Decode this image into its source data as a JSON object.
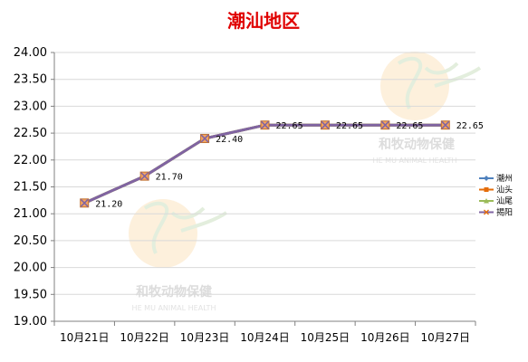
{
  "chart_data": {
    "type": "line",
    "title": "潮汕地区",
    "categories": [
      "10月21日",
      "10月22日",
      "10月23日",
      "10月24日",
      "10月25日",
      "10月26日",
      "10月27日"
    ],
    "ylim": [
      19.0,
      24.0
    ],
    "yticks": [
      "19.00",
      "19.50",
      "20.00",
      "20.50",
      "21.00",
      "21.50",
      "22.00",
      "22.50",
      "23.00",
      "23.50",
      "24.00"
    ],
    "grid": true,
    "legend_position": "right",
    "series": [
      {
        "name": "潮州",
        "values": [
          21.2,
          21.7,
          22.4,
          22.65,
          22.65,
          22.65,
          22.65
        ],
        "color": "#4f81bd",
        "marker": "diamond"
      },
      {
        "name": "汕头",
        "values": [
          21.2,
          21.7,
          22.4,
          22.65,
          22.65,
          22.65,
          22.65
        ],
        "color": "#e46c0a",
        "marker": "square"
      },
      {
        "name": "汕尾",
        "values": [
          21.2,
          21.7,
          22.4,
          22.65,
          22.65,
          22.65,
          22.65
        ],
        "color": "#9bbb59",
        "marker": "triangle"
      },
      {
        "name": "揭阳",
        "values": [
          21.2,
          21.7,
          22.4,
          22.65,
          22.65,
          22.65,
          22.65
        ],
        "color": "#8064a2",
        "marker": "x"
      }
    ],
    "data_labels": [
      "21.20",
      "21.70",
      "22.40",
      "22.65",
      "22.65",
      "22.65",
      "22.65"
    ]
  },
  "watermark": {
    "text_cn": "和牧动物保健",
    "text_en": "HE MU ANIMAL HEALTH"
  }
}
